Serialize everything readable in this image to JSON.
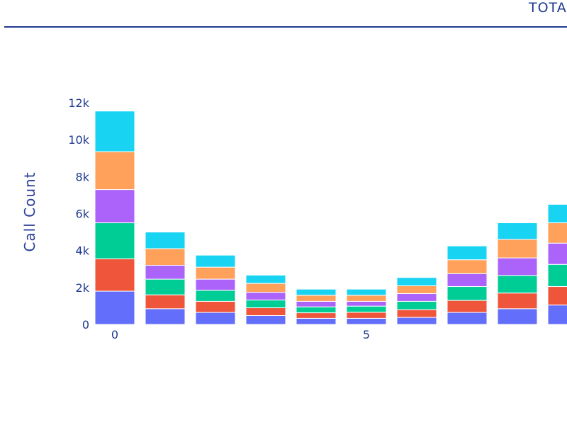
{
  "header": {
    "title": "TOTA"
  },
  "chart_data": {
    "type": "bar",
    "stacked": true,
    "x": [
      0,
      1,
      2,
      3,
      4,
      5,
      6,
      7,
      8,
      9
    ],
    "x_tick_labels": [
      {
        "x": 0,
        "label": "0"
      },
      {
        "x": 5,
        "label": "5"
      }
    ],
    "ylabel": "Call Count",
    "xlabel": "",
    "ylim": [
      0,
      12000
    ],
    "y_ticks": [
      0,
      2000,
      4000,
      6000,
      8000,
      10000,
      12000
    ],
    "y_tick_labels": [
      "0",
      "2k",
      "4k",
      "6k",
      "8k",
      "10k",
      "12k"
    ],
    "grid": false,
    "series": [
      {
        "color": "#636efa",
        "values": [
          1800,
          850,
          650,
          480,
          330,
          330,
          380,
          650,
          850,
          1050
        ]
      },
      {
        "color": "#ef553b",
        "values": [
          1750,
          750,
          600,
          420,
          300,
          330,
          420,
          650,
          850,
          1000
        ]
      },
      {
        "color": "#00cc96",
        "values": [
          1950,
          850,
          600,
          420,
          320,
          330,
          450,
          750,
          950,
          1200
        ]
      },
      {
        "color": "#ab63fa",
        "values": [
          1800,
          750,
          600,
          420,
          300,
          260,
          420,
          700,
          950,
          1150
        ]
      },
      {
        "color": "#ffa15a",
        "values": [
          2050,
          900,
          650,
          480,
          330,
          330,
          420,
          750,
          1000,
          1100
        ]
      },
      {
        "color": "#19d3f3",
        "values": [
          2200,
          900,
          650,
          450,
          330,
          330,
          450,
          750,
          900,
          1000
        ]
      }
    ]
  }
}
